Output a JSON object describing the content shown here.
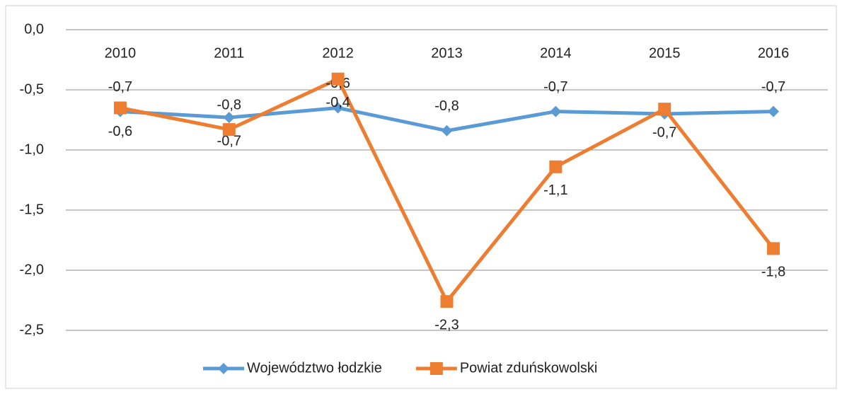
{
  "chart_data": {
    "type": "line",
    "categories": [
      "2010",
      "2011",
      "2012",
      "2013",
      "2014",
      "2015",
      "2016"
    ],
    "series": [
      {
        "name": "Województwo łodzkie",
        "color": "#5b9bd5",
        "marker": "diamond",
        "values": [
          -0.68,
          -0.73,
          -0.65,
          -0.84,
          -0.68,
          -0.7,
          -0.68
        ],
        "value_labels": [
          "-0,7",
          "-0,7",
          "-0,6",
          "-0,8",
          "-0,7",
          null,
          "-0,7"
        ]
      },
      {
        "name": "Powiat zduńskowolski",
        "color": "#ed7d31",
        "marker": "square",
        "values": [
          -0.65,
          -0.83,
          -0.41,
          -2.26,
          -1.14,
          -0.66,
          -1.82
        ],
        "value_labels": [
          "-0,6",
          "-0,8",
          "-0,4",
          "-2,3",
          "-1,1",
          "-0,7",
          "-1,8"
        ]
      }
    ],
    "ylim": [
      -2.5,
      0
    ],
    "yticks": [
      {
        "value": 0,
        "label": "0,0"
      },
      {
        "value": -0.5,
        "label": "-0,5"
      },
      {
        "value": -1,
        "label": "-1,0"
      },
      {
        "value": -1.5,
        "label": "-1,5"
      },
      {
        "value": -2,
        "label": "-2,0"
      },
      {
        "value": -2.5,
        "label": "-2,5"
      }
    ],
    "grid": true,
    "legend": "bottom"
  }
}
